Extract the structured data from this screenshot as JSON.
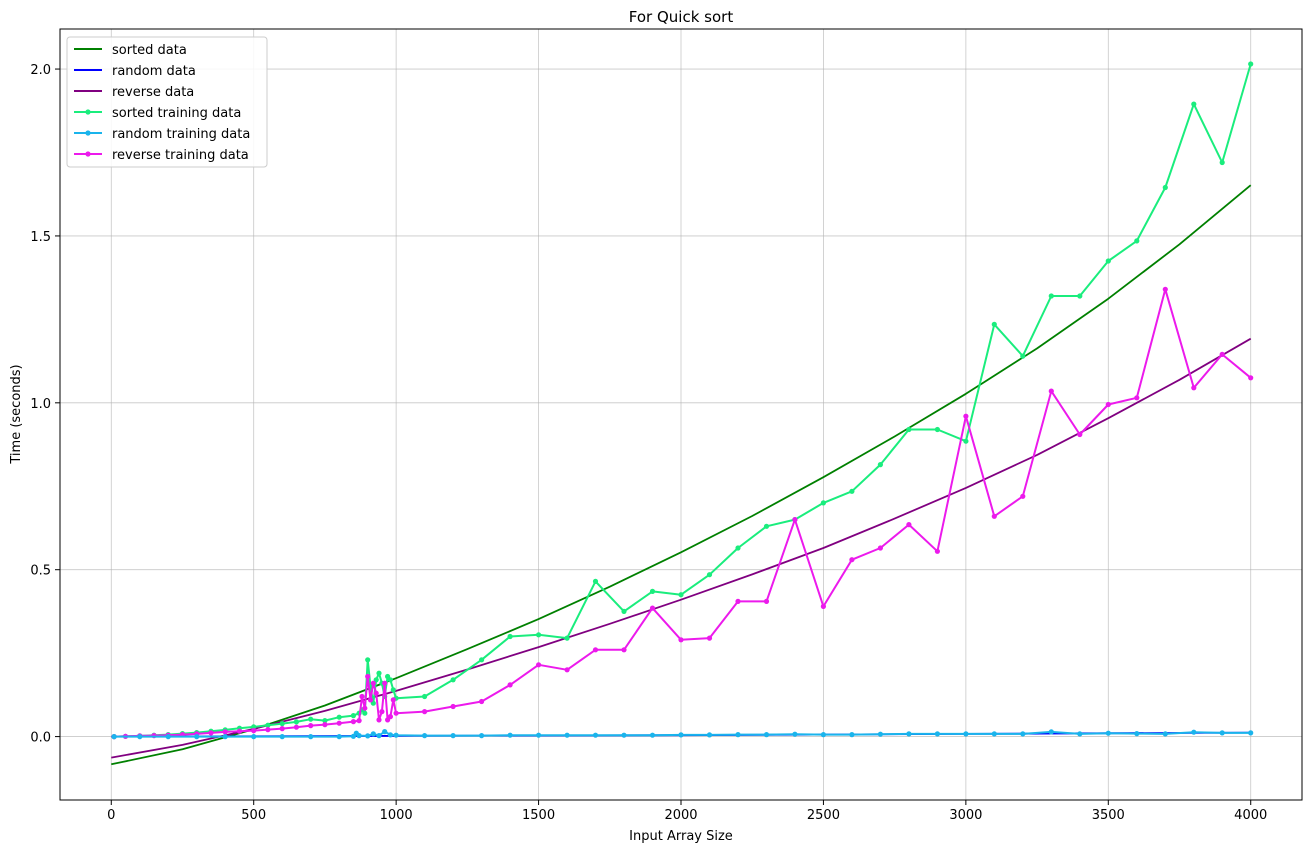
{
  "chart_data": {
    "type": "line",
    "title": "For Quick sort",
    "xlabel": "Input Array Size",
    "ylabel": "Time (seconds)",
    "xlim": [
      -180,
      4180
    ],
    "ylim": [
      -0.19,
      2.12
    ],
    "xticks": [
      0,
      500,
      1000,
      1500,
      2000,
      2500,
      3000,
      3500,
      4000
    ],
    "yticks": [
      0.0,
      0.5,
      1.0,
      1.5,
      2.0
    ],
    "xtick_labels": [
      "0",
      "500",
      "1000",
      "1500",
      "2000",
      "2500",
      "3000",
      "3500",
      "4000"
    ],
    "ytick_labels": [
      "0.0",
      "0.5",
      "1.0",
      "1.5",
      "2.0"
    ],
    "grid": true,
    "legend_position": "top-left",
    "series": [
      {
        "name": "sorted data",
        "kind": "fit",
        "color": "#008000",
        "x": [
          0,
          250,
          500,
          750,
          1000,
          1250,
          1500,
          1750,
          2000,
          2250,
          2500,
          2750,
          3000,
          3250,
          3500,
          3750,
          4000
        ],
        "y": [
          -0.083,
          -0.038,
          0.022,
          0.093,
          0.175,
          0.262,
          0.352,
          0.449,
          0.552,
          0.661,
          0.777,
          0.899,
          1.027,
          1.163,
          1.312,
          1.475,
          1.652
        ]
      },
      {
        "name": "random data",
        "kind": "fit",
        "color": "#0000ff",
        "x": [
          0,
          1000,
          2000,
          3000,
          4000
        ],
        "y": [
          0.0,
          0.002,
          0.004,
          0.008,
          0.012
        ]
      },
      {
        "name": "reverse data",
        "kind": "fit",
        "color": "#800080",
        "x": [
          0,
          250,
          500,
          750,
          1000,
          1250,
          1500,
          1750,
          2000,
          2250,
          2500,
          2750,
          3000,
          3250,
          3500,
          3750,
          4000
        ],
        "y": [
          -0.063,
          -0.025,
          0.023,
          0.077,
          0.137,
          0.201,
          0.268,
          0.338,
          0.41,
          0.486,
          0.565,
          0.653,
          0.745,
          0.844,
          0.954,
          1.069,
          1.192
        ]
      },
      {
        "name": "sorted training data",
        "kind": "points",
        "color": "#1aed7d",
        "x": [
          10,
          50,
          100,
          150,
          200,
          250,
          300,
          350,
          400,
          450,
          500,
          550,
          600,
          650,
          700,
          750,
          800,
          850,
          870,
          880,
          890,
          900,
          910,
          920,
          930,
          940,
          950,
          960,
          970,
          980,
          990,
          1000,
          1100,
          1200,
          1300,
          1400,
          1500,
          1600,
          1700,
          1800,
          1900,
          2000,
          2100,
          2200,
          2300,
          2400,
          2500,
          2600,
          2700,
          2800,
          2900,
          3000,
          3100,
          3200,
          3300,
          3400,
          3500,
          3600,
          3700,
          3800,
          3900,
          4000
        ],
        "y": [
          0.0,
          0.001,
          0.002,
          0.004,
          0.006,
          0.009,
          0.012,
          0.016,
          0.02,
          0.025,
          0.029,
          0.034,
          0.039,
          0.044,
          0.052,
          0.048,
          0.058,
          0.063,
          0.07,
          0.08,
          0.07,
          0.23,
          0.15,
          0.1,
          0.17,
          0.19,
          0.16,
          0.12,
          0.18,
          0.17,
          0.14,
          0.115,
          0.12,
          0.17,
          0.23,
          0.3,
          0.305,
          0.295,
          0.465,
          0.375,
          0.435,
          0.425,
          0.485,
          0.565,
          0.63,
          0.65,
          0.7,
          0.735,
          0.815,
          0.92,
          0.92,
          0.885,
          1.235,
          1.14,
          1.32,
          1.32,
          1.425,
          1.485,
          1.645,
          1.895,
          1.72,
          2.015
        ]
      },
      {
        "name": "random training data",
        "kind": "points",
        "color": "#1ab4ec",
        "x": [
          10,
          100,
          200,
          300,
          400,
          500,
          600,
          700,
          800,
          850,
          860,
          870,
          900,
          920,
          940,
          960,
          980,
          1000,
          1100,
          1200,
          1300,
          1400,
          1500,
          1600,
          1700,
          1800,
          1900,
          2000,
          2100,
          2200,
          2300,
          2400,
          2500,
          2600,
          2700,
          2800,
          2900,
          3000,
          3100,
          3200,
          3300,
          3400,
          3500,
          3600,
          3700,
          3800,
          3900,
          4000
        ],
        "y": [
          0.0,
          0.0,
          0.0,
          0.0,
          0.0,
          0.0,
          0.0,
          0.0,
          0.0,
          0.001,
          0.01,
          0.003,
          0.002,
          0.008,
          0.003,
          0.015,
          0.005,
          0.004,
          0.003,
          0.003,
          0.003,
          0.004,
          0.004,
          0.004,
          0.004,
          0.004,
          0.004,
          0.005,
          0.005,
          0.006,
          0.006,
          0.007,
          0.006,
          0.006,
          0.007,
          0.008,
          0.008,
          0.008,
          0.008,
          0.008,
          0.014,
          0.008,
          0.01,
          0.009,
          0.008,
          0.013,
          0.011,
          0.011
        ]
      },
      {
        "name": "reverse training data",
        "kind": "points",
        "color": "#ec1aec",
        "x": [
          10,
          50,
          100,
          150,
          200,
          250,
          300,
          350,
          400,
          450,
          500,
          550,
          600,
          650,
          700,
          750,
          800,
          850,
          870,
          880,
          890,
          900,
          910,
          920,
          930,
          940,
          950,
          960,
          970,
          980,
          990,
          1000,
          1100,
          1200,
          1300,
          1400,
          1500,
          1600,
          1700,
          1800,
          1900,
          2000,
          2100,
          2200,
          2300,
          2400,
          2500,
          2600,
          2700,
          2800,
          2900,
          3000,
          3100,
          3200,
          3300,
          3400,
          3500,
          3600,
          3700,
          3800,
          3900,
          4000
        ],
        "y": [
          0.0,
          0.001,
          0.002,
          0.003,
          0.004,
          0.006,
          0.008,
          0.011,
          0.014,
          0.016,
          0.018,
          0.021,
          0.024,
          0.028,
          0.033,
          0.036,
          0.04,
          0.045,
          0.048,
          0.12,
          0.085,
          0.18,
          0.11,
          0.16,
          0.13,
          0.05,
          0.075,
          0.16,
          0.05,
          0.06,
          0.11,
          0.07,
          0.075,
          0.09,
          0.105,
          0.155,
          0.215,
          0.2,
          0.26,
          0.26,
          0.385,
          0.29,
          0.295,
          0.405,
          0.405,
          0.65,
          0.39,
          0.53,
          0.565,
          0.635,
          0.555,
          0.96,
          0.66,
          0.72,
          1.035,
          0.905,
          0.995,
          1.015,
          1.34,
          1.045,
          1.145,
          1.075
        ]
      }
    ]
  }
}
